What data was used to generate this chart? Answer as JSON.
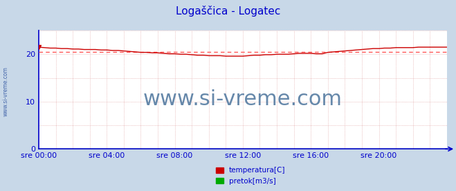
{
  "title": "Logaščica - Logatec",
  "title_color": "#0000cc",
  "title_fontsize": 11,
  "bg_color": "#c8d8e8",
  "plot_bg_color": "#ffffff",
  "x_ticks": [
    "sre 00:00",
    "sre 04:00",
    "sre 08:00",
    "sre 12:00",
    "sre 16:00",
    "sre 20:00"
  ],
  "x_ticks_vals": [
    0,
    4,
    8,
    12,
    16,
    20
  ],
  "ylim": [
    0,
    25
  ],
  "yticks": [
    0,
    10,
    20
  ],
  "y_axis_color": "#0000cc",
  "x_axis_color": "#0000cc",
  "grid_color": "#dd9999",
  "avg_line_value": 20.55,
  "avg_line_color": "#ff5555",
  "temp_color": "#cc0000",
  "flow_color": "#00aa00",
  "watermark_text": "www.si-vreme.com",
  "watermark_color": "#6688aa",
  "watermark_fontsize": 22,
  "sidebar_text": "www.si-vreme.com",
  "sidebar_color": "#4466aa",
  "legend_labels": [
    "temperatura[C]",
    "pretok[m3/s]"
  ],
  "legend_colors": [
    "#cc0000",
    "#00aa00"
  ],
  "temp_data_x": [
    0,
    0.33,
    0.67,
    1.0,
    1.33,
    1.67,
    2.0,
    2.33,
    2.67,
    3.0,
    3.33,
    3.67,
    4.0,
    4.33,
    4.67,
    5.0,
    5.33,
    5.67,
    6.0,
    6.33,
    6.67,
    7.0,
    7.33,
    7.67,
    8.0,
    8.33,
    8.67,
    9.0,
    9.33,
    9.67,
    10.0,
    10.33,
    10.67,
    11.0,
    11.33,
    11.67,
    12.0,
    12.33,
    12.67,
    13.0,
    13.33,
    13.67,
    14.0,
    14.33,
    14.67,
    15.0,
    15.33,
    15.67,
    16.0,
    16.33,
    16.67,
    17.0,
    17.33,
    17.67,
    18.0,
    18.33,
    18.67,
    19.0,
    19.33,
    19.67,
    20.0,
    20.33,
    20.67,
    21.0,
    21.33,
    21.67,
    22.0,
    22.33,
    22.67,
    23.0,
    23.33,
    23.67,
    24.0
  ],
  "temp_data_y": [
    21.5,
    21.4,
    21.3,
    21.3,
    21.2,
    21.2,
    21.1,
    21.1,
    21.0,
    21.0,
    21.0,
    20.9,
    20.9,
    20.8,
    20.8,
    20.7,
    20.6,
    20.5,
    20.4,
    20.4,
    20.3,
    20.3,
    20.2,
    20.1,
    20.1,
    20.0,
    20.0,
    19.9,
    19.8,
    19.8,
    19.7,
    19.7,
    19.7,
    19.6,
    19.6,
    19.6,
    19.6,
    19.7,
    19.8,
    19.8,
    19.9,
    19.9,
    20.0,
    20.0,
    20.0,
    20.1,
    20.2,
    20.2,
    20.2,
    20.1,
    20.1,
    20.4,
    20.5,
    20.6,
    20.7,
    20.8,
    20.9,
    21.0,
    21.1,
    21.2,
    21.2,
    21.3,
    21.3,
    21.4,
    21.4,
    21.4,
    21.4,
    21.5,
    21.5,
    21.5,
    21.5,
    21.5,
    21.5
  ],
  "flow_data_y": [
    0.02,
    0.02,
    0.02,
    0.02,
    0.02,
    0.02,
    0.02,
    0.02,
    0.02,
    0.02,
    0.02,
    0.02,
    0.02,
    0.02,
    0.02,
    0.02,
    0.02,
    0.02,
    0.02,
    0.02,
    0.02,
    0.02,
    0.02,
    0.02,
    0.02,
    0.02,
    0.02,
    0.02,
    0.02,
    0.02,
    0.02,
    0.02,
    0.02,
    0.02,
    0.02,
    0.02,
    0.02,
    0.02,
    0.02,
    0.02,
    0.02,
    0.02,
    0.02,
    0.02,
    0.02,
    0.02,
    0.02,
    0.02,
    0.02,
    0.02,
    0.02,
    0.02,
    0.02,
    0.02,
    0.02,
    0.02,
    0.02,
    0.02,
    0.02,
    0.02,
    0.02,
    0.02,
    0.02,
    0.02,
    0.02,
    0.02,
    0.02,
    0.02,
    0.02,
    0.02,
    0.02,
    0.02,
    0.02
  ]
}
